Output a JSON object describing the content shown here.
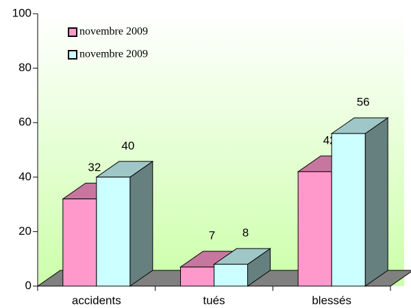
{
  "chart_data": {
    "type": "bar3d",
    "categories": [
      "accidents",
      "tués",
      "blessés"
    ],
    "series": [
      {
        "name": "novembre 2009",
        "color": "#ff99cc",
        "values": [
          32,
          7,
          42
        ]
      },
      {
        "name": "novembre 2009",
        "color": "#ccffff",
        "values": [
          40,
          8,
          56
        ]
      }
    ],
    "ylim": [
      0,
      100
    ],
    "yticks": [
      0,
      20,
      40,
      60,
      80,
      100
    ]
  }
}
